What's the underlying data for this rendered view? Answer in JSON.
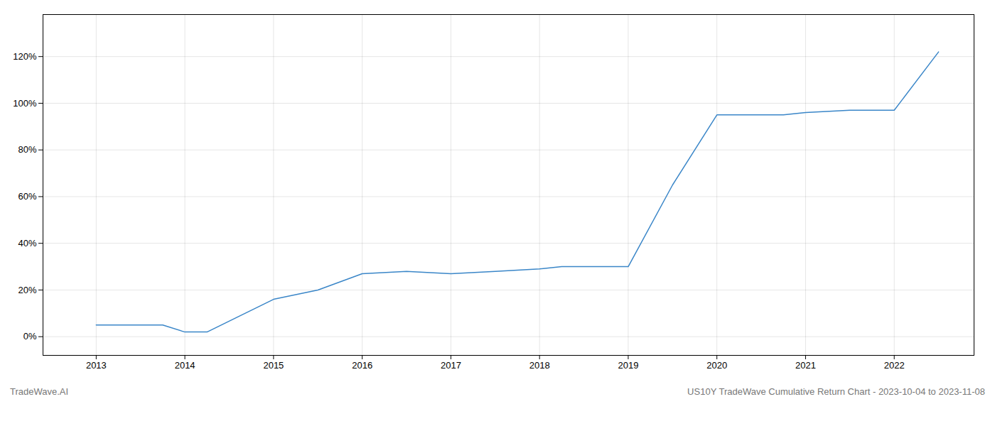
{
  "chart_data": {
    "type": "line",
    "x": [
      2013,
      2013.75,
      2014,
      2014.25,
      2015,
      2015.5,
      2016,
      2016.5,
      2017,
      2017.5,
      2018,
      2018.25,
      2018.75,
      2019,
      2019.5,
      2020,
      2020.25,
      2020.75,
      2021,
      2021.5,
      2022,
      2022.5
    ],
    "values": [
      5,
      5,
      2,
      2,
      16,
      20,
      27,
      28,
      27,
      28,
      29,
      30,
      30,
      30,
      65,
      95,
      95,
      95,
      96,
      97,
      97,
      122
    ],
    "color": "#3a86c8",
    "xlim": [
      2012.4,
      2022.9
    ],
    "ylim": [
      -8,
      138
    ],
    "xticks": [
      2013,
      2014,
      2015,
      2016,
      2017,
      2018,
      2019,
      2020,
      2021,
      2022
    ],
    "yticks": [
      {
        "value": 0,
        "label": "0%"
      },
      {
        "value": 20,
        "label": "20%"
      },
      {
        "value": 40,
        "label": "40%"
      },
      {
        "value": 60,
        "label": "60%"
      },
      {
        "value": 80,
        "label": "80%"
      },
      {
        "value": 100,
        "label": "100%"
      },
      {
        "value": 120,
        "label": "120%"
      }
    ],
    "grid": true,
    "annotations": [
      "TradeWave.AI",
      "US10Y TradeWave Cumulative Return Chart - 2023-10-04 to 2023-11-08"
    ]
  }
}
